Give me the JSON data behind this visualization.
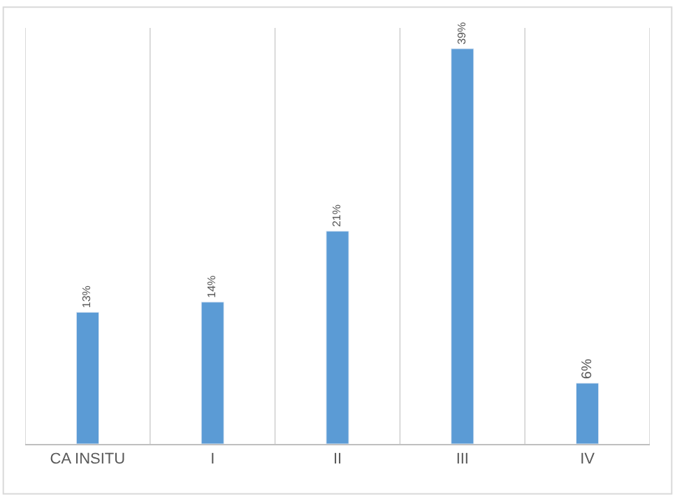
{
  "chart_data": {
    "type": "bar",
    "categories": [
      "CA INSITU",
      "I",
      "II",
      "III",
      "IV"
    ],
    "values": [
      13,
      14,
      21,
      39,
      6
    ],
    "value_labels": [
      "13%",
      "14%",
      "21%",
      "39%",
      "6%"
    ],
    "color": "#5b9bd5",
    "grid": "x",
    "legend": false
  }
}
